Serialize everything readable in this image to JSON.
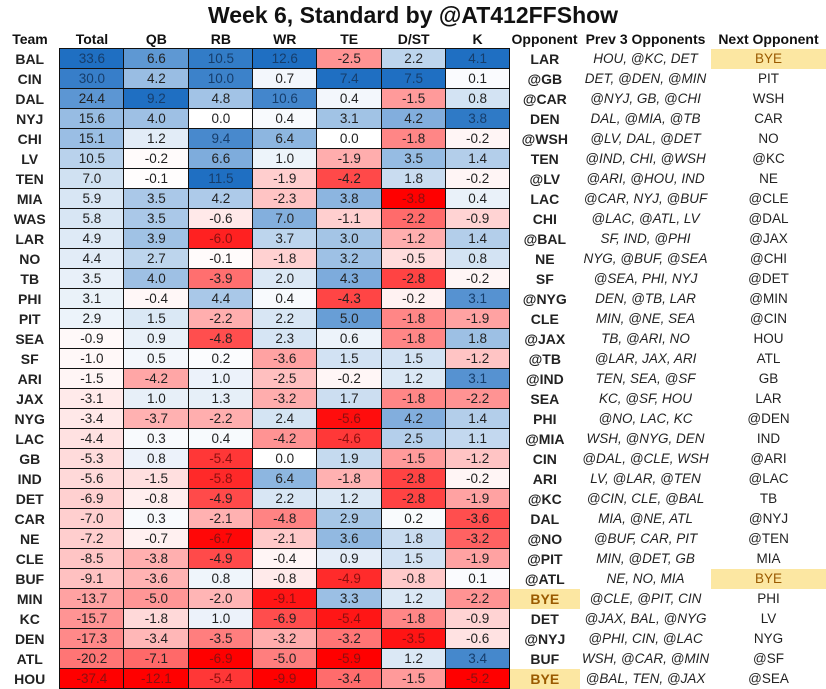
{
  "title": "Week 6, Standard by @AT412FFShow",
  "colors": {
    "blue": "#1f6fc2",
    "red": "#ff0000",
    "bye_bg": "#fce7a2",
    "bye_text": "#9a5a00"
  },
  "chart_data": {
    "type": "heatmap",
    "title": "Week 6, Standard by @AT412FFShow",
    "columns": [
      "Team",
      "Total",
      "QB",
      "RB",
      "WR",
      "TE",
      "D/ST",
      "K",
      "Opponent",
      "Prev  3 Opponents",
      "Next Opponent"
    ],
    "value_columns": [
      "Total",
      "QB",
      "RB",
      "WR",
      "TE",
      "D/ST",
      "K"
    ],
    "rows": [
      {
        "team": "BAL",
        "values": [
          33.6,
          6.6,
          10.5,
          12.6,
          -2.5,
          2.2,
          4.1
        ],
        "opponent": "LAR",
        "prev3": "HOU, @KC, DET",
        "next": "BYE"
      },
      {
        "team": "CIN",
        "values": [
          30.0,
          4.2,
          10.0,
          0.7,
          7.4,
          7.5,
          0.1
        ],
        "opponent": "@GB",
        "prev3": "DET, @DEN, @MIN",
        "next": "PIT"
      },
      {
        "team": "DAL",
        "values": [
          24.4,
          9.2,
          4.8,
          10.6,
          0.4,
          -1.5,
          0.8
        ],
        "opponent": "@CAR",
        "prev3": "@NYJ, GB, @CHI",
        "next": "WSH"
      },
      {
        "team": "NYJ",
        "values": [
          15.6,
          4.0,
          0.0,
          0.4,
          3.1,
          4.2,
          3.8
        ],
        "opponent": "DEN",
        "prev3": "DAL, @MIA, @TB",
        "next": "CAR"
      },
      {
        "team": "CHI",
        "values": [
          15.1,
          1.2,
          9.4,
          6.4,
          0.0,
          -1.8,
          -0.2
        ],
        "opponent": "@WSH",
        "prev3": "@LV, DAL, @DET",
        "next": "NO"
      },
      {
        "team": "LV",
        "values": [
          10.5,
          -0.2,
          6.6,
          1.0,
          -1.9,
          3.5,
          1.4
        ],
        "opponent": "TEN",
        "prev3": "@IND, CHI, @WSH",
        "next": "@KC"
      },
      {
        "team": "TEN",
        "values": [
          7.0,
          -0.1,
          11.5,
          -1.9,
          -4.2,
          1.8,
          -0.2
        ],
        "opponent": "@LV",
        "prev3": "@ARI, @HOU, IND",
        "next": "NE"
      },
      {
        "team": "MIA",
        "values": [
          5.9,
          3.5,
          4.2,
          -2.3,
          3.8,
          -3.8,
          0.4
        ],
        "opponent": "LAC",
        "prev3": "@CAR, NYJ, @BUF",
        "next": "@CLE"
      },
      {
        "team": "WAS",
        "values": [
          5.8,
          3.5,
          -0.6,
          7.0,
          -1.1,
          -2.2,
          -0.9
        ],
        "opponent": "CHI",
        "prev3": "@LAC, @ATL, LV",
        "next": "@DAL"
      },
      {
        "team": "LAR",
        "values": [
          4.9,
          3.9,
          -6.0,
          3.7,
          3.0,
          -1.2,
          1.4
        ],
        "opponent": "@BAL",
        "prev3": "SF, IND, @PHI",
        "next": "@JAX"
      },
      {
        "team": "NO",
        "values": [
          4.4,
          2.7,
          -0.1,
          -1.8,
          3.2,
          -0.5,
          0.8
        ],
        "opponent": "NE",
        "prev3": "NYG, @BUF, @SEA",
        "next": "@CHI"
      },
      {
        "team": "TB",
        "values": [
          3.5,
          4.0,
          -3.9,
          2.0,
          4.3,
          -2.8,
          -0.2
        ],
        "opponent": "SF",
        "prev3": "@SEA, PHI, NYJ",
        "next": "@DET"
      },
      {
        "team": "PHI",
        "values": [
          3.1,
          -0.4,
          4.4,
          0.4,
          -4.3,
          -0.2,
          3.1
        ],
        "opponent": "@NYG",
        "prev3": "DEN, @TB, LAR",
        "next": "@MIN"
      },
      {
        "team": "PIT",
        "values": [
          2.9,
          1.5,
          -2.2,
          2.2,
          5.0,
          -1.8,
          -1.9
        ],
        "opponent": "CLE",
        "prev3": "MIN, @NE, SEA",
        "next": "@CIN"
      },
      {
        "team": "SEA",
        "values": [
          -0.9,
          0.9,
          -4.8,
          2.3,
          0.6,
          -1.8,
          1.8
        ],
        "opponent": "@JAX",
        "prev3": "TB, @ARI, NO",
        "next": "HOU"
      },
      {
        "team": "SF",
        "values": [
          -1.0,
          0.5,
          0.2,
          -3.6,
          1.5,
          1.5,
          -1.2
        ],
        "opponent": "@TB",
        "prev3": "@LAR, JAX, ARI",
        "next": "ATL"
      },
      {
        "team": "ARI",
        "values": [
          -1.5,
          -4.2,
          1.0,
          -2.5,
          -0.2,
          1.2,
          3.1
        ],
        "opponent": "@IND",
        "prev3": "TEN, SEA, @SF",
        "next": "GB"
      },
      {
        "team": "JAX",
        "values": [
          -3.1,
          1.0,
          1.3,
          -3.2,
          1.7,
          -1.8,
          -2.2
        ],
        "opponent": "SEA",
        "prev3": "KC, @SF, HOU",
        "next": "LAR"
      },
      {
        "team": "NYG",
        "values": [
          -3.4,
          -3.7,
          -2.2,
          2.4,
          -5.6,
          4.2,
          1.4
        ],
        "opponent": "PHI",
        "prev3": "@NO, LAC, KC",
        "next": "@DEN"
      },
      {
        "team": "LAC",
        "values": [
          -4.4,
          0.3,
          0.4,
          -4.2,
          -4.6,
          2.5,
          1.1
        ],
        "opponent": "@MIA",
        "prev3": "WSH, @NYG, DEN",
        "next": "IND"
      },
      {
        "team": "GB",
        "values": [
          -5.3,
          0.8,
          -5.4,
          0.0,
          1.9,
          -1.5,
          -1.2
        ],
        "opponent": "CIN",
        "prev3": "@DAL, @CLE, WSH",
        "next": "@ARI"
      },
      {
        "team": "IND",
        "values": [
          -5.6,
          -1.5,
          -5.8,
          6.4,
          -1.8,
          -2.8,
          -0.2
        ],
        "opponent": "ARI",
        "prev3": "LV, @LAR, @TEN",
        "next": "@LAC"
      },
      {
        "team": "DET",
        "values": [
          -6.9,
          -0.8,
          -4.9,
          2.2,
          1.2,
          -2.8,
          -1.9
        ],
        "opponent": "@KC",
        "prev3": "@CIN, CLE, @BAL",
        "next": "TB"
      },
      {
        "team": "CAR",
        "values": [
          -7.0,
          0.3,
          -2.1,
          -4.8,
          2.9,
          0.2,
          -3.6
        ],
        "opponent": "DAL",
        "prev3": "MIA, @NE, ATL",
        "next": "@NYJ"
      },
      {
        "team": "NE",
        "values": [
          -7.2,
          -0.7,
          -6.7,
          -2.1,
          3.6,
          1.8,
          -3.2
        ],
        "opponent": "@NO",
        "prev3": "@BUF, CAR, PIT",
        "next": "@TEN"
      },
      {
        "team": "CLE",
        "values": [
          -8.5,
          -3.8,
          -4.9,
          -0.4,
          0.9,
          1.5,
          -1.9
        ],
        "opponent": "@PIT",
        "prev3": "MIN, @DET, GB",
        "next": "MIA"
      },
      {
        "team": "BUF",
        "values": [
          -9.1,
          -3.6,
          0.8,
          -0.8,
          -4.9,
          -0.8,
          0.1
        ],
        "opponent": "@ATL",
        "prev3": "NE, NO, MIA",
        "next": "BYE"
      },
      {
        "team": "MIN",
        "values": [
          -13.7,
          -5.0,
          -2.0,
          -9.1,
          3.3,
          1.2,
          -2.2
        ],
        "opponent": "BYE",
        "prev3": "@CLE, @PIT, CIN",
        "next": "PHI"
      },
      {
        "team": "KC",
        "values": [
          -15.7,
          -1.8,
          1.0,
          -6.9,
          -5.4,
          -1.8,
          -0.9
        ],
        "opponent": "DET",
        "prev3": "@JAX, BAL, @NYG",
        "next": "LV"
      },
      {
        "team": "DEN",
        "values": [
          -17.3,
          -3.4,
          -3.5,
          -3.2,
          -3.2,
          -3.5,
          -0.6
        ],
        "opponent": "@NYJ",
        "prev3": "@PHI, CIN, @LAC",
        "next": "NYG"
      },
      {
        "team": "ATL",
        "values": [
          -20.2,
          -7.1,
          -6.9,
          -5.0,
          -5.9,
          1.2,
          3.4
        ],
        "opponent": "BUF",
        "prev3": "WSH, @CAR, @MIN",
        "next": "@SF"
      },
      {
        "team": "HOU",
        "values": [
          -37.4,
          -12.1,
          -5.4,
          -9.9,
          -3.4,
          -1.5,
          -5.2
        ],
        "opponent": "BYE",
        "prev3": "@BAL, TEN, @JAX",
        "next": "@SEA"
      }
    ]
  }
}
